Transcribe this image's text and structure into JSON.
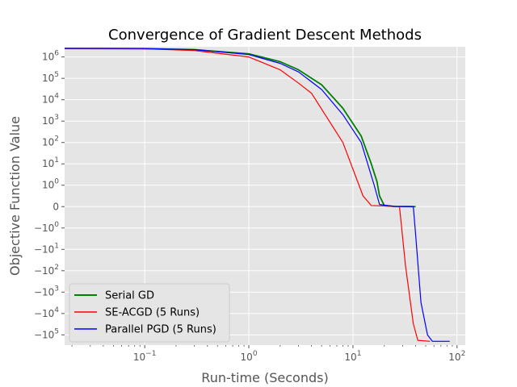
{
  "chart_data": {
    "type": "line",
    "title": "Convergence of Gradient Descent Methods",
    "xlabel": "Run-time (Seconds)",
    "ylabel": "Objective Function Value",
    "xscale": "log",
    "yscale": "symlog",
    "xlim": [
      0.017,
      120
    ],
    "ylim": [
      -300000,
      3000000
    ],
    "x_ticks": [
      {
        "value": 0.1,
        "base": "10",
        "exp": "−1"
      },
      {
        "value": 1,
        "base": "10",
        "exp": "0"
      },
      {
        "value": 10,
        "base": "10",
        "exp": "1"
      },
      {
        "value": 100,
        "base": "10",
        "exp": "2"
      }
    ],
    "y_ticks": [
      {
        "value": 1000000,
        "base": "10",
        "exp": "6"
      },
      {
        "value": 100000,
        "base": "10",
        "exp": "5"
      },
      {
        "value": 10000,
        "base": "10",
        "exp": "4"
      },
      {
        "value": 1000,
        "base": "10",
        "exp": "3"
      },
      {
        "value": 100,
        "base": "10",
        "exp": "2"
      },
      {
        "value": 10,
        "base": "10",
        "exp": "1"
      },
      {
        "value": 1,
        "base": "10",
        "exp": "0"
      },
      {
        "value": 0,
        "base": "0",
        "exp": ""
      },
      {
        "value": -1,
        "base": "−10",
        "exp": "0"
      },
      {
        "value": -10,
        "base": "−10",
        "exp": "1"
      },
      {
        "value": -100,
        "base": "−10",
        "exp": "2"
      },
      {
        "value": -1000,
        "base": "−10",
        "exp": "3"
      },
      {
        "value": -10000,
        "base": "−10",
        "exp": "4"
      },
      {
        "value": -100000,
        "base": "−10",
        "exp": "5"
      }
    ],
    "grid": true,
    "legend_position": "lower-left",
    "series": [
      {
        "name": "Serial GD",
        "color": "#008000",
        "points": [
          [
            0.017,
            2500000
          ],
          [
            0.1,
            2450000
          ],
          [
            0.3,
            2200000
          ],
          [
            1,
            1400000
          ],
          [
            2,
            600000
          ],
          [
            3,
            250000
          ],
          [
            5,
            50000
          ],
          [
            8,
            4000
          ],
          [
            12,
            200
          ],
          [
            15,
            10
          ],
          [
            17,
            1.5
          ],
          [
            18,
            0.5
          ],
          [
            20,
            0.05
          ],
          [
            25,
            0.01
          ],
          [
            40,
            0
          ]
        ]
      },
      {
        "name": "SE-ACGD (5 Runs)",
        "color": "#ff0000",
        "points": [
          [
            0.017,
            2500000
          ],
          [
            0.1,
            2400000
          ],
          [
            0.3,
            2000000
          ],
          [
            1,
            1000000
          ],
          [
            2,
            250000
          ],
          [
            3,
            60000
          ],
          [
            4,
            20000
          ],
          [
            8,
            100
          ],
          [
            12.5,
            0.5
          ],
          [
            15,
            0.05
          ],
          [
            28,
            0
          ],
          [
            32,
            -60
          ],
          [
            38,
            -30000
          ],
          [
            42,
            -180000
          ],
          [
            55,
            -200000
          ]
        ]
      },
      {
        "name": "Parallel PGD (5 Runs)",
        "color": "#0000ff",
        "points": [
          [
            0.017,
            2500000
          ],
          [
            0.1,
            2450000
          ],
          [
            0.3,
            2200000
          ],
          [
            1,
            1300000
          ],
          [
            2,
            500000
          ],
          [
            3,
            200000
          ],
          [
            5,
            30000
          ],
          [
            8,
            2000
          ],
          [
            12,
            100
          ],
          [
            16,
            1
          ],
          [
            18,
            0.1
          ],
          [
            25,
            0.01
          ],
          [
            38,
            0
          ],
          [
            40,
            -2
          ],
          [
            45,
            -3000
          ],
          [
            52,
            -100000
          ],
          [
            58,
            -200000
          ],
          [
            85,
            -200000
          ]
        ]
      }
    ]
  }
}
